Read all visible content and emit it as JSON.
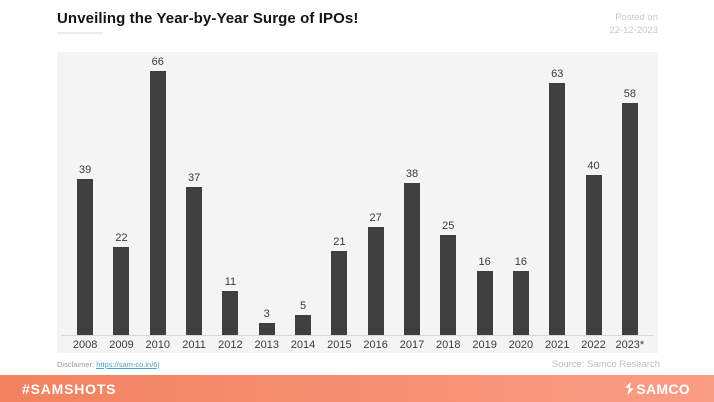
{
  "header": {
    "title": "Unveiling the Year-by-Year Surge of IPOs!",
    "posted_on_line1": "Posted on",
    "posted_on_line2": "22-12-2023"
  },
  "chart_data": {
    "type": "bar",
    "title": "Unveiling the Year-by-Year Surge of IPOs!",
    "categories": [
      "2008",
      "2009",
      "2010",
      "2011",
      "2012",
      "2013",
      "2014",
      "2015",
      "2016",
      "2017",
      "2018",
      "2019",
      "2020",
      "2021",
      "2022",
      "2023*"
    ],
    "values": [
      39,
      22,
      66,
      37,
      11,
      3,
      5,
      21,
      27,
      38,
      25,
      16,
      16,
      63,
      40,
      58
    ],
    "xlabel": "",
    "ylabel": "",
    "ylim": [
      0,
      70
    ],
    "grid": false,
    "legend": "none",
    "value_labels": true,
    "bar_color": "#3f3f3f",
    "plot_background": "#f4f4f4"
  },
  "footnotes": {
    "disclaimer_label": "Disclaimer:",
    "disclaimer_link": "https://sam-co.in/6j",
    "source": "Source: Samco Research"
  },
  "footer": {
    "hashtag": "#SAMSHOTS",
    "brand": "SAMCO",
    "gradient_left": "#f1825f",
    "gradient_right": "#fa9d85"
  }
}
